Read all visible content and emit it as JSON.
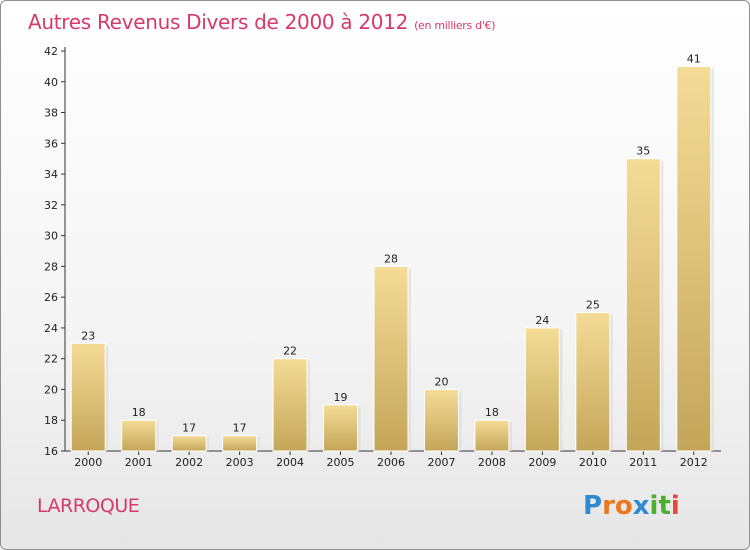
{
  "title": "Autres Revenus Divers de 2000 à 2012",
  "subtitle": "(en milliers d'€)",
  "commune": "LARROQUE",
  "logo": {
    "letters": [
      "P",
      "r",
      "o",
      "x",
      "i",
      "t",
      "i"
    ],
    "colors": [
      "#2e8bd0",
      "#e9781f",
      "#e9781f",
      "#2e8bd0",
      "#4caf2f",
      "#4caf2f",
      "#e5463d"
    ]
  },
  "colors": {
    "title": "#d63a6a",
    "bar_top": "#f4dc97",
    "bar_bottom": "#c4a659"
  },
  "chart_data": {
    "type": "bar",
    "categories": [
      "2000",
      "2001",
      "2002",
      "2003",
      "2004",
      "2005",
      "2006",
      "2007",
      "2008",
      "2009",
      "2010",
      "2011",
      "2012"
    ],
    "values": [
      23,
      18,
      17,
      17,
      22,
      19,
      28,
      20,
      18,
      24,
      25,
      35,
      41
    ],
    "ylim": [
      16,
      42
    ],
    "yticks": [
      16,
      18,
      20,
      22,
      24,
      26,
      28,
      30,
      32,
      34,
      36,
      38,
      40,
      42
    ],
    "grid": false
  }
}
